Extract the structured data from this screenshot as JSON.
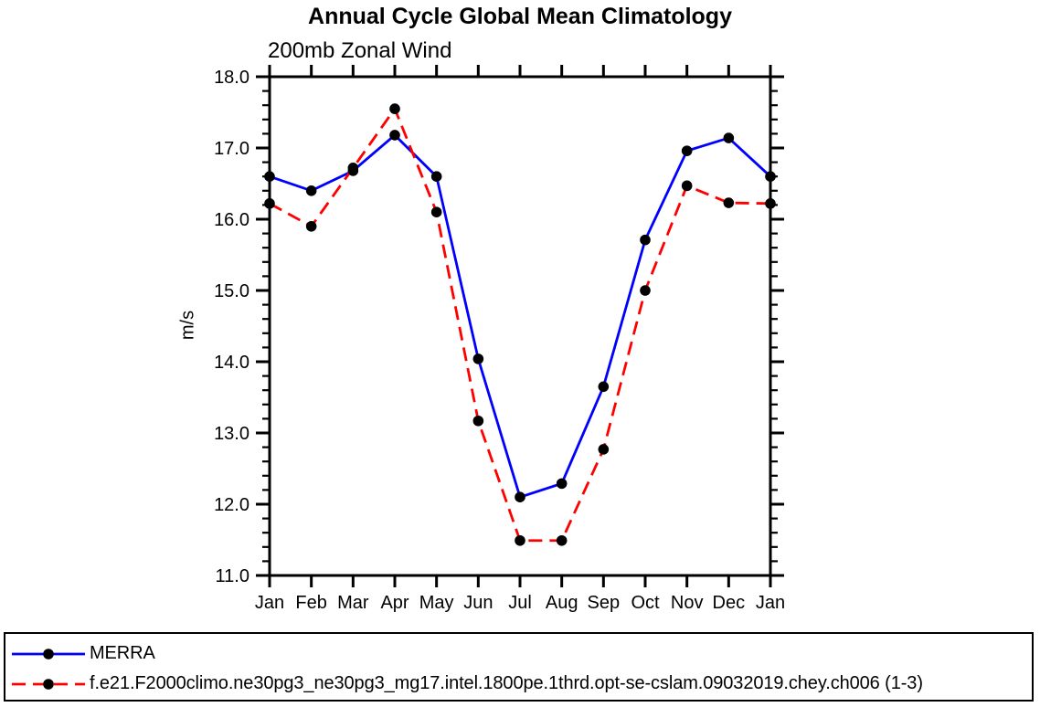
{
  "figure": {
    "title": "Annual Cycle Global Mean Climatology",
    "subtitle": "200mb Zonal Wind",
    "ylabel": "m/s"
  },
  "chart_data": {
    "type": "line",
    "title": "Annual Cycle Global Mean Climatology",
    "subtitle": "200mb Zonal Wind",
    "xlabel": "",
    "ylabel": "m/s",
    "categories": [
      "Jan",
      "Feb",
      "Mar",
      "Apr",
      "May",
      "Jun",
      "Jul",
      "Aug",
      "Sep",
      "Oct",
      "Nov",
      "Dec",
      "Jan"
    ],
    "ylim": [
      11.0,
      18.0
    ],
    "ytick_values": [
      11,
      12,
      13,
      14,
      15,
      16,
      17,
      18
    ],
    "ytick_labels": [
      "11.0",
      "12.0",
      "13.0",
      "14.0",
      "15.0",
      "16.0",
      "17.0",
      "18.0"
    ],
    "minor_tick_step": 0.2,
    "grid": false,
    "legend_position": "bottom-left-box",
    "axis_color": "#000000",
    "marker_color": "#000000",
    "series": [
      {
        "name": "MERRA",
        "color": "#0000ff",
        "line_style": "solid",
        "marker": "filled-circle",
        "values": [
          16.6,
          16.4,
          16.68,
          17.18,
          16.6,
          14.04,
          12.1,
          12.29,
          13.65,
          15.71,
          16.96,
          17.14,
          16.6
        ]
      },
      {
        "name": "f.e21.F2000climo.ne30pg3_ne30pg3_mg17.intel.1800pe.1thrd.opt-se-cslam.09032019.chey.ch006 (1-3)",
        "color": "#ff0000",
        "line_style": "dashed",
        "marker": "filled-circle",
        "values": [
          16.22,
          15.9,
          16.72,
          17.55,
          16.1,
          13.17,
          11.49,
          11.49,
          12.77,
          15.0,
          16.47,
          16.23,
          16.22
        ]
      }
    ]
  }
}
